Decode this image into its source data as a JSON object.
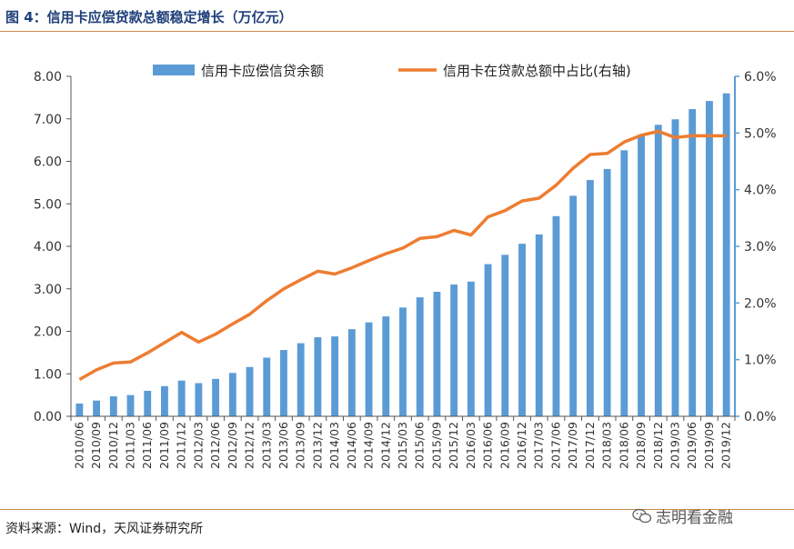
{
  "title": "图 4：信用卡应偿贷款总额稳定增长（万亿元）",
  "source": "资料来源：Wind，天风证券研究所",
  "watermark": "志明看金融",
  "colors": {
    "bar": "#5b9bd5",
    "line": "#ed7d31",
    "axis": "#5b9bd5"
  },
  "chart_data": {
    "type": "bar+line",
    "categories": [
      "2010/06",
      "2010/09",
      "2010/12",
      "2011/03",
      "2011/06",
      "2011/09",
      "2011/12",
      "2012/03",
      "2012/06",
      "2012/09",
      "2012/12",
      "2013/03",
      "2013/06",
      "2013/09",
      "2013/12",
      "2014/03",
      "2014/06",
      "2014/09",
      "2014/12",
      "2015/03",
      "2015/06",
      "2015/09",
      "2015/12",
      "2016/03",
      "2016/06",
      "2016/09",
      "2016/12",
      "2017/03",
      "2017/06",
      "2017/09",
      "2017/12",
      "2018/03",
      "2018/06",
      "2018/09",
      "2018/12",
      "2019/03",
      "2019/06",
      "2019/09",
      "2019/12"
    ],
    "series": [
      {
        "name": "信用卡应偿信贷余额",
        "type": "bar",
        "axis": "left",
        "values": [
          0.3,
          0.37,
          0.47,
          0.5,
          0.6,
          0.71,
          0.84,
          0.78,
          0.88,
          1.02,
          1.16,
          1.38,
          1.56,
          1.72,
          1.86,
          1.88,
          2.05,
          2.21,
          2.35,
          2.56,
          2.8,
          2.93,
          3.1,
          3.17,
          3.58,
          3.8,
          4.06,
          4.28,
          4.71,
          5.19,
          5.56,
          5.82,
          6.26,
          6.62,
          6.86,
          6.99,
          7.23,
          7.42,
          7.6
        ]
      },
      {
        "name": "信用卡在贷款总额中占比(右轴)",
        "type": "line",
        "axis": "right",
        "values": [
          0.65,
          0.82,
          0.94,
          0.96,
          1.12,
          1.3,
          1.48,
          1.31,
          1.45,
          1.63,
          1.8,
          2.04,
          2.25,
          2.41,
          2.56,
          2.51,
          2.62,
          2.75,
          2.87,
          2.97,
          3.14,
          3.17,
          3.28,
          3.2,
          3.52,
          3.63,
          3.8,
          3.85,
          4.08,
          4.38,
          4.62,
          4.64,
          4.84,
          4.96,
          5.03,
          4.92,
          4.95,
          4.95,
          4.95
        ]
      }
    ],
    "yleft": {
      "min": 0,
      "max": 8,
      "ticks": [
        "0.00",
        "1.00",
        "2.00",
        "3.00",
        "4.00",
        "5.00",
        "6.00",
        "7.00",
        "8.00"
      ]
    },
    "yright": {
      "min": 0,
      "max": 6,
      "ticks": [
        "0.0%",
        "1.0%",
        "2.0%",
        "3.0%",
        "4.0%",
        "5.0%",
        "6.0%"
      ]
    },
    "legend": "top"
  }
}
